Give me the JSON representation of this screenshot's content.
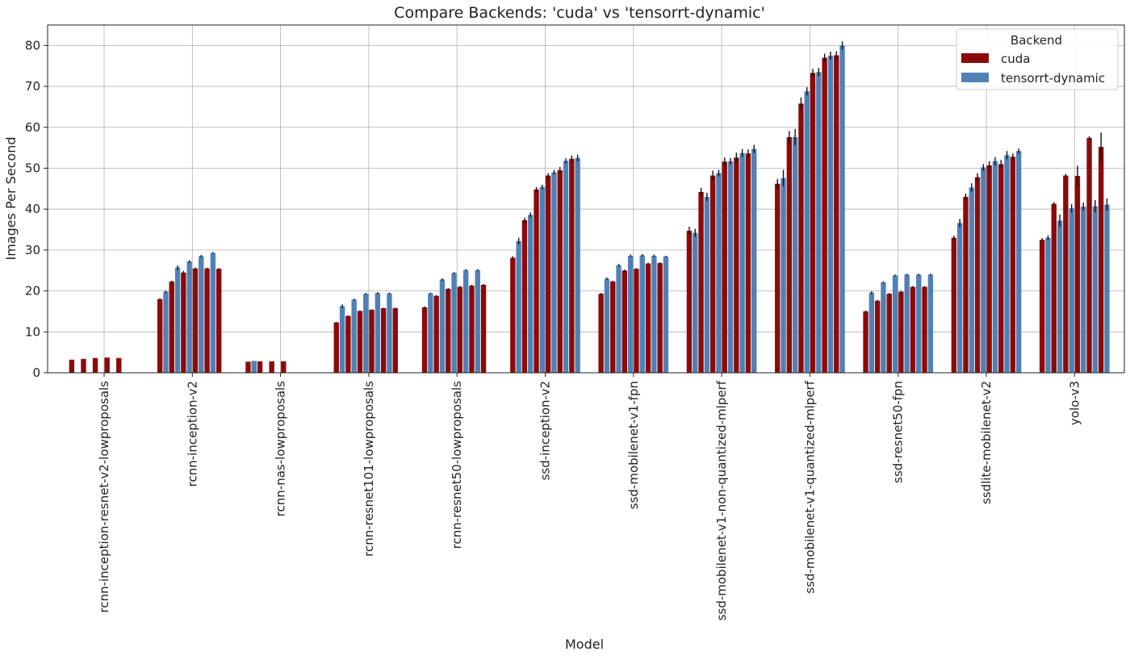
{
  "chart_data": {
    "type": "bar",
    "title": "Compare Backends: 'cuda' vs 'tensorrt-dynamic'",
    "xlabel": "Model",
    "ylabel": "Images Per Second",
    "ylim": [
      0,
      85
    ],
    "yticks": [
      0,
      10,
      20,
      30,
      40,
      50,
      60,
      70,
      80
    ],
    "grid": true,
    "legend": {
      "title": "Backend",
      "placement": "top-right",
      "entries": [
        "cuda",
        "tensorrt-dynamic"
      ]
    },
    "colors": {
      "cuda": "#8b0a0a",
      "tensorrt-dynamic": "#5081b6"
    },
    "note": "Each model has several bars per backend (one per run configuration); bars alternate cuda / tensorrt-dynamic.",
    "categories": [
      "rcnn-inception-resnet-v2-lowproposals",
      "rcnn-inception-v2",
      "rcnn-nas-lowproposals",
      "rcnn-resnet101-lowproposals",
      "rcnn-resnet50-lowproposals",
      "ssd-inception-v2",
      "ssd-mobilenet-v1-fpn",
      "ssd-mobilenet-v1-non-quantized-mlperf",
      "ssd-mobilenet-v1-quantized-mlperf",
      "ssd-resnet50-fpn",
      "ssdlite-mobilenet-v2",
      "yolo-v3"
    ],
    "groups": [
      {
        "bars": [
          {
            "b": "cuda",
            "v": 3.2
          },
          {
            "b": "tensorrt-dynamic",
            "v": 0
          },
          {
            "b": "cuda",
            "v": 3.4
          },
          {
            "b": "tensorrt-dynamic",
            "v": 0
          },
          {
            "b": "cuda",
            "v": 3.6
          },
          {
            "b": "tensorrt-dynamic",
            "v": 0
          },
          {
            "b": "cuda",
            "v": 3.7
          },
          {
            "b": "tensorrt-dynamic",
            "v": 0
          },
          {
            "b": "cuda",
            "v": 3.6
          },
          {
            "b": "tensorrt-dynamic",
            "v": 0
          },
          {
            "b": "cuda",
            "v": 0
          },
          {
            "b": "tensorrt-dynamic",
            "v": 0
          }
        ]
      },
      {
        "bars": [
          {
            "b": "cuda",
            "v": 18.0,
            "e": 0.2
          },
          {
            "b": "tensorrt-dynamic",
            "v": 19.8,
            "e": 0.3
          },
          {
            "b": "cuda",
            "v": 22.3,
            "e": 0.2
          },
          {
            "b": "tensorrt-dynamic",
            "v": 25.7,
            "e": 0.5
          },
          {
            "b": "cuda",
            "v": 24.5,
            "e": 0.4
          },
          {
            "b": "tensorrt-dynamic",
            "v": 27.2,
            "e": 0.3
          },
          {
            "b": "cuda",
            "v": 25.5,
            "e": 0.2
          },
          {
            "b": "tensorrt-dynamic",
            "v": 28.5,
            "e": 0.3
          },
          {
            "b": "cuda",
            "v": 25.5,
            "e": 0.2
          },
          {
            "b": "tensorrt-dynamic",
            "v": 29.3,
            "e": 0.2
          },
          {
            "b": "cuda",
            "v": 25.4,
            "e": 0.2
          },
          {
            "b": "tensorrt-dynamic",
            "v": 0
          }
        ]
      },
      {
        "bars": [
          {
            "b": "cuda",
            "v": 2.7
          },
          {
            "b": "tensorrt-dynamic",
            "v": 2.9
          },
          {
            "b": "cuda",
            "v": 2.8
          },
          {
            "b": "tensorrt-dynamic",
            "v": 0
          },
          {
            "b": "cuda",
            "v": 2.8
          },
          {
            "b": "tensorrt-dynamic",
            "v": 0
          },
          {
            "b": "cuda",
            "v": 2.8
          },
          {
            "b": "tensorrt-dynamic",
            "v": 0
          },
          {
            "b": "cuda",
            "v": 0
          },
          {
            "b": "tensorrt-dynamic",
            "v": 0
          },
          {
            "b": "cuda",
            "v": 0
          },
          {
            "b": "tensorrt-dynamic",
            "v": 0
          }
        ]
      },
      {
        "bars": [
          {
            "b": "cuda",
            "v": 12.3,
            "e": 0.1
          },
          {
            "b": "tensorrt-dynamic",
            "v": 16.3,
            "e": 0.4
          },
          {
            "b": "cuda",
            "v": 13.9,
            "e": 0.1
          },
          {
            "b": "tensorrt-dynamic",
            "v": 17.9,
            "e": 0.2
          },
          {
            "b": "cuda",
            "v": 15.1,
            "e": 0.1
          },
          {
            "b": "tensorrt-dynamic",
            "v": 19.3,
            "e": 0.2
          },
          {
            "b": "cuda",
            "v": 15.4,
            "e": 0.1
          },
          {
            "b": "tensorrt-dynamic",
            "v": 19.5,
            "e": 0.2
          },
          {
            "b": "cuda",
            "v": 15.8,
            "e": 0.1
          },
          {
            "b": "tensorrt-dynamic",
            "v": 19.4,
            "e": 0.2
          },
          {
            "b": "cuda",
            "v": 15.8,
            "e": 0.1
          },
          {
            "b": "tensorrt-dynamic",
            "v": 0
          }
        ]
      },
      {
        "bars": [
          {
            "b": "cuda",
            "v": 16.0,
            "e": 0.2
          },
          {
            "b": "tensorrt-dynamic",
            "v": 19.4,
            "e": 0.2
          },
          {
            "b": "cuda",
            "v": 18.8,
            "e": 0.2
          },
          {
            "b": "tensorrt-dynamic",
            "v": 22.8,
            "e": 0.3
          },
          {
            "b": "cuda",
            "v": 20.5,
            "e": 0.2
          },
          {
            "b": "tensorrt-dynamic",
            "v": 24.4,
            "e": 0.2
          },
          {
            "b": "cuda",
            "v": 21.0,
            "e": 0.2
          },
          {
            "b": "tensorrt-dynamic",
            "v": 25.1,
            "e": 0.2
          },
          {
            "b": "cuda",
            "v": 21.3,
            "e": 0.2
          },
          {
            "b": "tensorrt-dynamic",
            "v": 25.1,
            "e": 0.2
          },
          {
            "b": "cuda",
            "v": 21.5,
            "e": 0.2
          },
          {
            "b": "tensorrt-dynamic",
            "v": 0
          }
        ]
      },
      {
        "bars": [
          {
            "b": "cuda",
            "v": 28.1,
            "e": 0.4
          },
          {
            "b": "tensorrt-dynamic",
            "v": 32.2,
            "e": 0.8
          },
          {
            "b": "cuda",
            "v": 37.3,
            "e": 0.6
          },
          {
            "b": "tensorrt-dynamic",
            "v": 38.6,
            "e": 0.6
          },
          {
            "b": "cuda",
            "v": 44.8,
            "e": 0.6
          },
          {
            "b": "tensorrt-dynamic",
            "v": 45.4,
            "e": 0.6
          },
          {
            "b": "cuda",
            "v": 48.2,
            "e": 0.6
          },
          {
            "b": "tensorrt-dynamic",
            "v": 49.0,
            "e": 0.6
          },
          {
            "b": "cuda",
            "v": 49.5,
            "e": 0.8
          },
          {
            "b": "tensorrt-dynamic",
            "v": 51.8,
            "e": 0.6
          },
          {
            "b": "cuda",
            "v": 52.3,
            "e": 0.8
          },
          {
            "b": "tensorrt-dynamic",
            "v": 52.5,
            "e": 0.8
          }
        ]
      },
      {
        "bars": [
          {
            "b": "cuda",
            "v": 19.3,
            "e": 0.2
          },
          {
            "b": "tensorrt-dynamic",
            "v": 23.0,
            "e": 0.3
          },
          {
            "b": "cuda",
            "v": 22.3,
            "e": 0.2
          },
          {
            "b": "tensorrt-dynamic",
            "v": 26.3,
            "e": 0.3
          },
          {
            "b": "cuda",
            "v": 25.0,
            "e": 0.2
          },
          {
            "b": "tensorrt-dynamic",
            "v": 28.6,
            "e": 0.3
          },
          {
            "b": "cuda",
            "v": 25.4,
            "e": 0.2
          },
          {
            "b": "tensorrt-dynamic",
            "v": 28.7,
            "e": 0.3
          },
          {
            "b": "cuda",
            "v": 26.7,
            "e": 0.2
          },
          {
            "b": "tensorrt-dynamic",
            "v": 28.6,
            "e": 0.3
          },
          {
            "b": "cuda",
            "v": 26.8,
            "e": 0.2
          },
          {
            "b": "tensorrt-dynamic",
            "v": 28.4,
            "e": 0.2
          }
        ]
      },
      {
        "bars": [
          {
            "b": "cuda",
            "v": 34.7,
            "e": 1.0
          },
          {
            "b": "tensorrt-dynamic",
            "v": 34.2,
            "e": 1.0
          },
          {
            "b": "cuda",
            "v": 44.2,
            "e": 1.0
          },
          {
            "b": "tensorrt-dynamic",
            "v": 43.0,
            "e": 1.0
          },
          {
            "b": "cuda",
            "v": 48.2,
            "e": 1.2
          },
          {
            "b": "tensorrt-dynamic",
            "v": 48.8,
            "e": 0.8
          },
          {
            "b": "cuda",
            "v": 51.6,
            "e": 1.0
          },
          {
            "b": "tensorrt-dynamic",
            "v": 51.7,
            "e": 0.8
          },
          {
            "b": "cuda",
            "v": 52.6,
            "e": 1.2
          },
          {
            "b": "tensorrt-dynamic",
            "v": 53.7,
            "e": 1.0
          },
          {
            "b": "cuda",
            "v": 53.6,
            "e": 1.0
          },
          {
            "b": "tensorrt-dynamic",
            "v": 54.7,
            "e": 1.0
          }
        ]
      },
      {
        "bars": [
          {
            "b": "cuda",
            "v": 46.2,
            "e": 1.2
          },
          {
            "b": "tensorrt-dynamic",
            "v": 47.6,
            "e": 2.0
          },
          {
            "b": "cuda",
            "v": 57.6,
            "e": 1.5
          },
          {
            "b": "tensorrt-dynamic",
            "v": 57.6,
            "e": 2.0
          },
          {
            "b": "cuda",
            "v": 65.8,
            "e": 1.5
          },
          {
            "b": "tensorrt-dynamic",
            "v": 68.8,
            "e": 1.0
          },
          {
            "b": "cuda",
            "v": 73.3,
            "e": 1.0
          },
          {
            "b": "tensorrt-dynamic",
            "v": 73.5,
            "e": 1.0
          },
          {
            "b": "cuda",
            "v": 77.0,
            "e": 1.0
          },
          {
            "b": "tensorrt-dynamic",
            "v": 77.5,
            "e": 1.0
          },
          {
            "b": "cuda",
            "v": 77.6,
            "e": 1.0
          },
          {
            "b": "tensorrt-dynamic",
            "v": 80.0,
            "e": 1.0
          }
        ]
      },
      {
        "bars": [
          {
            "b": "cuda",
            "v": 15.0,
            "e": 0.2
          },
          {
            "b": "tensorrt-dynamic",
            "v": 19.6,
            "e": 0.3
          },
          {
            "b": "cuda",
            "v": 17.6,
            "e": 0.2
          },
          {
            "b": "tensorrt-dynamic",
            "v": 22.1,
            "e": 0.2
          },
          {
            "b": "cuda",
            "v": 19.3,
            "e": 0.2
          },
          {
            "b": "tensorrt-dynamic",
            "v": 23.8,
            "e": 0.2
          },
          {
            "b": "cuda",
            "v": 19.8,
            "e": 0.2
          },
          {
            "b": "tensorrt-dynamic",
            "v": 24.0,
            "e": 0.2
          },
          {
            "b": "cuda",
            "v": 21.0,
            "e": 0.2
          },
          {
            "b": "tensorrt-dynamic",
            "v": 24.0,
            "e": 0.2
          },
          {
            "b": "cuda",
            "v": 21.0,
            "e": 0.2
          },
          {
            "b": "tensorrt-dynamic",
            "v": 24.0,
            "e": 0.2
          }
        ]
      },
      {
        "bars": [
          {
            "b": "cuda",
            "v": 33.0,
            "e": 0.5
          },
          {
            "b": "tensorrt-dynamic",
            "v": 36.6,
            "e": 1.0
          },
          {
            "b": "cuda",
            "v": 43.0,
            "e": 0.8
          },
          {
            "b": "tensorrt-dynamic",
            "v": 45.3,
            "e": 1.0
          },
          {
            "b": "cuda",
            "v": 47.8,
            "e": 1.0
          },
          {
            "b": "tensorrt-dynamic",
            "v": 50.2,
            "e": 0.8
          },
          {
            "b": "cuda",
            "v": 50.7,
            "e": 1.0
          },
          {
            "b": "tensorrt-dynamic",
            "v": 51.7,
            "e": 1.0
          },
          {
            "b": "cuda",
            "v": 51.0,
            "e": 1.0
          },
          {
            "b": "tensorrt-dynamic",
            "v": 53.2,
            "e": 1.0
          },
          {
            "b": "cuda",
            "v": 52.8,
            "e": 0.8
          },
          {
            "b": "tensorrt-dynamic",
            "v": 54.2,
            "e": 0.6
          }
        ]
      },
      {
        "bars": [
          {
            "b": "cuda",
            "v": 32.5,
            "e": 0.4
          },
          {
            "b": "tensorrt-dynamic",
            "v": 33.0,
            "e": 0.6
          },
          {
            "b": "cuda",
            "v": 41.3,
            "e": 0.4
          },
          {
            "b": "tensorrt-dynamic",
            "v": 37.2,
            "e": 1.5
          },
          {
            "b": "cuda",
            "v": 48.2,
            "e": 0.4
          },
          {
            "b": "tensorrt-dynamic",
            "v": 40.2,
            "e": 1.0
          },
          {
            "b": "cuda",
            "v": 48.1,
            "e": 2.5
          },
          {
            "b": "tensorrt-dynamic",
            "v": 40.6,
            "e": 1.0
          },
          {
            "b": "cuda",
            "v": 57.4,
            "e": 0.4
          },
          {
            "b": "tensorrt-dynamic",
            "v": 40.7,
            "e": 1.5
          },
          {
            "b": "cuda",
            "v": 55.2,
            "e": 3.5
          },
          {
            "b": "tensorrt-dynamic",
            "v": 41.1,
            "e": 1.5
          }
        ]
      }
    ]
  }
}
